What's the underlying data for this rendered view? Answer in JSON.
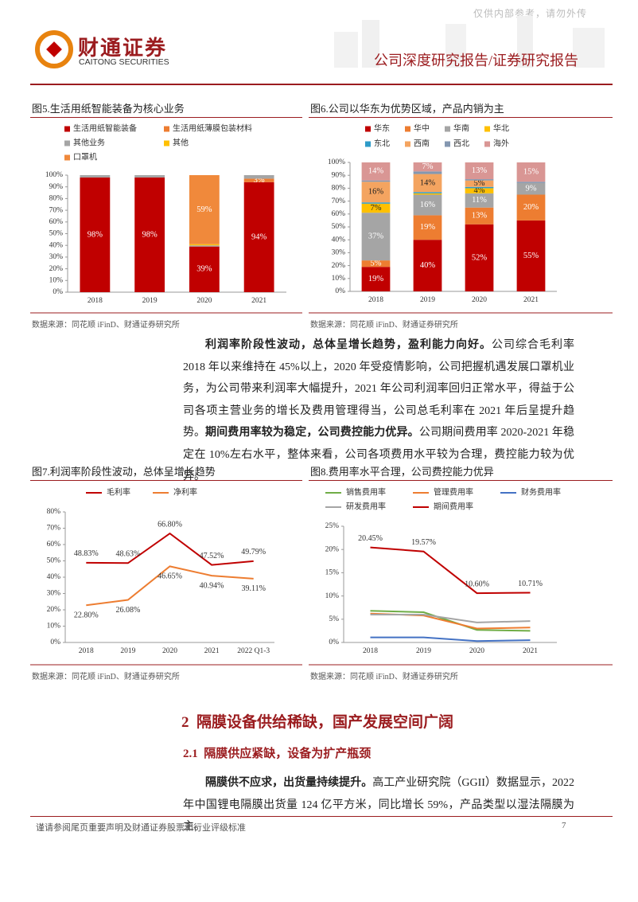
{
  "header": {
    "watermark": "仅供内部参考，请勿外传",
    "logo_cn": "财通证券",
    "logo_en": "CAITONG SECURITIES",
    "report_type": "公司深度研究报告/证券研究报告"
  },
  "figures": [
    {
      "title": "图5.生活用纸智能装备为核心业务",
      "source": "数据来源：同花顺 iFinD、财通证券研究所"
    },
    {
      "title": "图6.公司以华东为优势区域，产品内销为主",
      "source": "数据来源：同花顺 iFinD、财通证券研究所"
    },
    {
      "title": "图7.利润率阶段性波动，总体呈增长趋势",
      "source": "数据来源：同花顺 iFinD、财通证券研究所"
    },
    {
      "title": "图8.费用率水平合理，公司费控能力优异",
      "source": "数据来源：同花顺 iFinD、财通证券研究所"
    }
  ],
  "chart_data": [
    {
      "type": "bar",
      "stacked": true,
      "categories": [
        "2018",
        "2019",
        "2020",
        "2021"
      ],
      "ylim": [
        0,
        100
      ],
      "yticks": [
        {
          "value": 0,
          "label": "0%"
        },
        {
          "value": 10,
          "label": "10%"
        },
        {
          "value": 20,
          "label": "20%"
        },
        {
          "value": 30,
          "label": "30%"
        },
        {
          "value": 40,
          "label": "40%"
        },
        {
          "value": 50,
          "label": "50%"
        },
        {
          "value": 60,
          "label": "60%"
        },
        {
          "value": 70,
          "label": "70%"
        },
        {
          "value": 80,
          "label": "80%"
        },
        {
          "value": 90,
          "label": "90%"
        },
        {
          "value": 100,
          "label": "100%"
        }
      ],
      "series": [
        {
          "name": "生活用纸智能装备",
          "color": "#c00000",
          "values": [
            98,
            98,
            39,
            94
          ],
          "value_labels": [
            "98%",
            "98%",
            "39%",
            "94%"
          ]
        },
        {
          "name": "生活用纸薄膜包装材料",
          "color": "#ed7d31",
          "values": [
            0,
            0,
            0,
            3
          ],
          "value_labels": [
            null,
            null,
            null,
            "3%"
          ]
        },
        {
          "name": "其他业务",
          "color": "#a5a5a5",
          "values": [
            2,
            2,
            1,
            3
          ]
        },
        {
          "name": "其他",
          "color": "#ffc000",
          "values": [
            0,
            0,
            1,
            0
          ]
        },
        {
          "name": "口罩机",
          "color": "#f0893b",
          "values": [
            0,
            0,
            59,
            0
          ],
          "value_labels": [
            null,
            null,
            "59%",
            null
          ]
        }
      ]
    },
    {
      "type": "bar",
      "stacked": true,
      "categories": [
        "2018",
        "2019",
        "2020",
        "2021"
      ],
      "ylim": [
        0,
        100
      ],
      "yticks": [
        {
          "value": 0,
          "label": "0%"
        },
        {
          "value": 10,
          "label": "10%"
        },
        {
          "value": 20,
          "label": "20%"
        },
        {
          "value": 30,
          "label": "30%"
        },
        {
          "value": 40,
          "label": "40%"
        },
        {
          "value": 50,
          "label": "50%"
        },
        {
          "value": 60,
          "label": "60%"
        },
        {
          "value": 70,
          "label": "70%"
        },
        {
          "value": 80,
          "label": "80%"
        },
        {
          "value": 90,
          "label": "90%"
        },
        {
          "value": 100,
          "label": "100%"
        }
      ],
      "series": [
        {
          "name": "华东",
          "color": "#c00000",
          "values": [
            19,
            40,
            52,
            55
          ],
          "value_labels": [
            "19%",
            "40%",
            "52%",
            "55%"
          ]
        },
        {
          "name": "华中",
          "color": "#ed7d31",
          "values": [
            5,
            19,
            13,
            20
          ],
          "value_labels": [
            "5%",
            "19%",
            "13%",
            "20%"
          ]
        },
        {
          "name": "华南",
          "color": "#a5a5a5",
          "values": [
            37,
            16,
            11,
            9
          ],
          "value_labels": [
            "37%",
            "16%",
            "11%",
            "9%"
          ]
        },
        {
          "name": "华北",
          "color": "#ffc000",
          "values": [
            7,
            1,
            4,
            0
          ],
          "value_labels": [
            "7%",
            null,
            "4%",
            null
          ]
        },
        {
          "name": "东北",
          "color": "#2e9bc8",
          "values": [
            1,
            1,
            1,
            0
          ]
        },
        {
          "name": "西南",
          "color": "#f4a460",
          "values": [
            16,
            14,
            5,
            0
          ],
          "value_labels": [
            "16%",
            "14%",
            "5%",
            null
          ]
        },
        {
          "name": "西北",
          "color": "#8497b0",
          "values": [
            1,
            2,
            1,
            1
          ]
        },
        {
          "name": "海外",
          "color": "#d99694",
          "values": [
            14,
            7,
            13,
            15
          ],
          "value_labels": [
            "14%",
            "7%",
            "13%",
            "15%"
          ]
        }
      ]
    },
    {
      "type": "line",
      "categories": [
        "2018",
        "2019",
        "2020",
        "2021",
        "2022 Q1-3"
      ],
      "ylim": [
        0,
        80
      ],
      "yticks": [
        {
          "value": 0,
          "label": "0%"
        },
        {
          "value": 10,
          "label": "10%"
        },
        {
          "value": 20,
          "label": "20%"
        },
        {
          "value": 30,
          "label": "30%"
        },
        {
          "value": 40,
          "label": "40%"
        },
        {
          "value": 50,
          "label": "50%"
        },
        {
          "value": 60,
          "label": "60%"
        },
        {
          "value": 70,
          "label": "70%"
        },
        {
          "value": 80,
          "label": "80%"
        }
      ],
      "series": [
        {
          "name": "毛利率",
          "color": "#c00000",
          "values": [
            48.83,
            48.63,
            66.8,
            47.52,
            49.79
          ],
          "value_labels": [
            "48.83%",
            "48.63%",
            "66.80%",
            "47.52%",
            "49.79%"
          ]
        },
        {
          "name": "净利率",
          "color": "#ed7d31",
          "values": [
            22.8,
            26.08,
            46.65,
            40.94,
            39.11
          ],
          "value_labels": [
            "22.80%",
            "26.08%",
            "46.65%",
            "40.94%",
            "39.11%"
          ]
        }
      ]
    },
    {
      "type": "line",
      "categories": [
        "2018",
        "2019",
        "2020",
        "2021"
      ],
      "ylim": [
        0,
        25
      ],
      "yticks": [
        {
          "value": 0,
          "label": "0%"
        },
        {
          "value": 5,
          "label": "5%"
        },
        {
          "value": 10,
          "label": "10%"
        },
        {
          "value": 15,
          "label": "15%"
        },
        {
          "value": 20,
          "label": "20%"
        },
        {
          "value": 25,
          "label": "25%"
        }
      ],
      "series": [
        {
          "name": "销售费用率",
          "color": "#70ad47",
          "values": [
            6.8,
            6.5,
            2.7,
            2.5
          ]
        },
        {
          "name": "管理费用率",
          "color": "#ed7d31",
          "values": [
            6.2,
            5.8,
            3.0,
            3.2
          ]
        },
        {
          "name": "财务费用率",
          "color": "#4472c4",
          "values": [
            1.1,
            1.1,
            0.3,
            0.5
          ]
        },
        {
          "name": "研发费用率",
          "color": "#a5a5a5",
          "values": [
            6.0,
            6.0,
            4.3,
            4.6
          ]
        },
        {
          "name": "期间费用率",
          "color": "#c00000",
          "values": [
            20.45,
            19.57,
            10.6,
            10.71
          ],
          "value_labels": [
            "20.45%",
            "19.57%",
            "10.60%",
            "10.71%"
          ]
        }
      ]
    }
  ],
  "paragraphs": [
    {
      "bold": "利润率阶段性波动，总体呈增长趋势，盈利能力向好。",
      "text": "公司综合毛利率 2018 年以来维持在 45%以上，2020 年受疫情影响，公司把握机遇发展口罩机业务，为公司带来利润率大幅提升，2021 年公司利润率回归正常水平，得益于公司各项主营业务的增长及费用管理得当，公司总毛利率在 2021 年后呈提升趋势。"
    },
    {
      "bold": "期间费用率较为稳定，公司费控能力优异。",
      "text": "公司期间费用率 2020-2021 年稳定在 10%左右水平，整体来看，公司各项费用水平较为合理，费控能力较为优异。"
    },
    {
      "bold": "隔膜供不应求，出货量持续提升。",
      "text": "高工产业研究院（GGII）数据显示，2022 年中国锂电隔膜出货量 124 亿平方米，同比增长 59%，产品类型以湿法隔膜为主。"
    }
  ],
  "section": {
    "number": "2",
    "title": "隔膜设备供给稀缺，国产发展空间广阔"
  },
  "subsection": {
    "number": "2.1",
    "title": "隔膜供应紧缺，设备为扩产瓶颈"
  },
  "footer": {
    "disclaimer": "谨请参阅尾页重要声明及财通证券股票和行业评级标准",
    "page": "7"
  }
}
